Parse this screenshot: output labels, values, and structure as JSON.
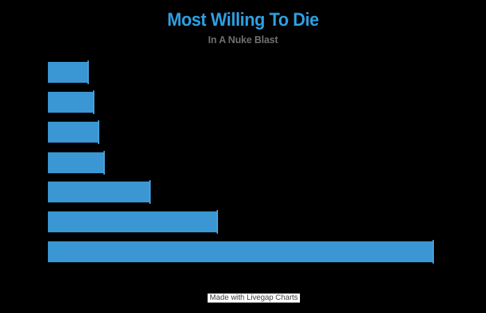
{
  "title": "Most Willing To Die",
  "subtitle": "In A Nuke Blast",
  "watermark": "Made with Livegap Charts",
  "colors": {
    "background": "#000000",
    "bar": "#3a97d3",
    "bar_tip_line": "#4aa2dc",
    "title": "#2e9fe3",
    "subtitle": "#6f6f6f",
    "watermark_background": "#ffffff",
    "watermark_text": "#3c3c3c"
  },
  "chart_data": {
    "type": "bar",
    "orientation": "horizontal",
    "title": "Most Willing To Die",
    "subtitle": "In A Nuke Blast",
    "categories": [
      "",
      "",
      "",
      "",
      "",
      "",
      ""
    ],
    "values": [
      8,
      9,
      10,
      11,
      20,
      33,
      75
    ],
    "xlim": [
      0,
      80
    ],
    "grid": false,
    "legend": false,
    "axis_labels_visible": false,
    "background": "#000000",
    "bar_color": "#3a97d3"
  }
}
